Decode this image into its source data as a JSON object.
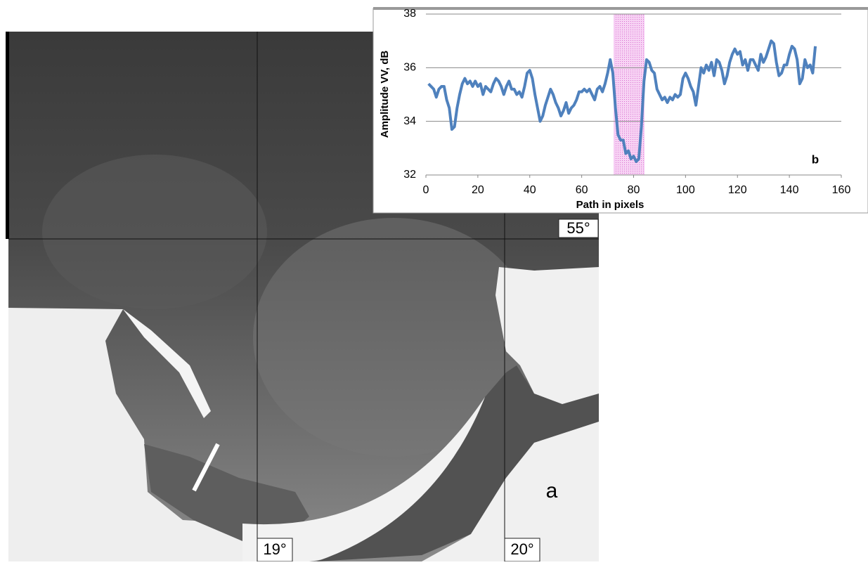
{
  "chart_data": {
    "type": "line",
    "xlabel": "Path in pixels",
    "ylabel": "Amplitude VV, dB",
    "annotation": "b",
    "color": "#4f81bd",
    "highlight": [
      72.5,
      84
    ],
    "highlight_color": "#f3b8f0",
    "xlim": [
      0,
      160
    ],
    "xticks": [
      0,
      20,
      40,
      60,
      80,
      100,
      120,
      140,
      160
    ],
    "ylim": [
      32,
      38
    ],
    "yticks": [
      32,
      34,
      36,
      38
    ],
    "grid": true,
    "x": [
      1,
      2,
      3,
      4,
      5,
      6,
      7,
      8,
      9,
      10,
      11,
      12,
      13,
      14,
      15,
      16,
      17,
      18,
      19,
      20,
      21,
      22,
      23,
      24,
      25,
      26,
      27,
      28,
      29,
      30,
      31,
      32,
      33,
      34,
      35,
      36,
      37,
      38,
      39,
      40,
      41,
      42,
      43,
      44,
      45,
      46,
      47,
      48,
      49,
      50,
      51,
      52,
      53,
      54,
      55,
      56,
      57,
      58,
      59,
      60,
      61,
      62,
      63,
      64,
      65,
      66,
      67,
      68,
      69,
      70,
      71,
      72,
      73,
      74,
      75,
      76,
      77,
      78,
      79,
      80,
      81,
      82,
      83,
      84,
      85,
      86,
      87,
      88,
      89,
      90,
      91,
      92,
      93,
      94,
      95,
      96,
      97,
      98,
      99,
      100,
      101,
      102,
      103,
      104,
      105,
      106,
      107,
      108,
      109,
      110,
      111,
      112,
      113,
      114,
      115,
      116,
      117,
      118,
      119,
      120,
      121,
      122,
      123,
      124,
      125,
      126,
      127,
      128,
      129,
      130,
      131,
      132,
      133,
      134,
      135,
      136,
      137,
      138,
      139,
      140,
      141,
      142,
      143,
      144,
      145,
      146,
      147,
      148,
      149,
      150
    ],
    "values": [
      35.4,
      35.3,
      35.2,
      34.9,
      35.2,
      35.3,
      35.3,
      34.8,
      34.5,
      33.7,
      33.8,
      34.5,
      35.0,
      35.4,
      35.6,
      35.4,
      35.5,
      35.3,
      35.5,
      35.3,
      35.4,
      35.0,
      35.3,
      35.2,
      35.1,
      35.4,
      35.6,
      35.5,
      35.3,
      35.0,
      35.3,
      35.5,
      35.2,
      35.2,
      35.0,
      35.1,
      34.9,
      35.3,
      35.8,
      35.9,
      35.6,
      35.0,
      34.5,
      34.0,
      34.2,
      34.6,
      34.9,
      35.2,
      35.0,
      34.7,
      34.5,
      34.2,
      34.4,
      34.7,
      34.3,
      34.5,
      34.6,
      34.8,
      35.1,
      35.1,
      35.2,
      35.1,
      35.2,
      35.0,
      34.8,
      35.2,
      35.3,
      35.1,
      35.4,
      35.8,
      36.3,
      35.8,
      34.5,
      33.5,
      33.3,
      33.3,
      32.8,
      32.9,
      32.6,
      32.7,
      32.5,
      32.6,
      33.8,
      35.5,
      36.3,
      36.2,
      35.9,
      35.8,
      35.2,
      35.0,
      34.8,
      34.9,
      34.7,
      34.9,
      34.8,
      35.0,
      34.9,
      35.0,
      35.6,
      35.8,
      35.6,
      35.3,
      35.1,
      34.6,
      35.3,
      36.0,
      35.8,
      36.1,
      35.9,
      36.2,
      35.7,
      36.3,
      36.2,
      35.9,
      35.4,
      35.7,
      36.2,
      36.5,
      36.7,
      36.5,
      36.6,
      36.1,
      36.3,
      35.9,
      36.3,
      36.3,
      36.1,
      35.9,
      36.5,
      36.2,
      36.4,
      36.7,
      37.0,
      36.9,
      36.2,
      35.7,
      35.8,
      36.1,
      36.1,
      36.5,
      36.8,
      36.7,
      36.3,
      35.4,
      35.6,
      36.3,
      36.0,
      36.1,
      35.8,
      36.8
    ]
  },
  "map": {
    "latitude_label": "55°",
    "longitude_labels": [
      "19°",
      "20°"
    ],
    "panel_label": "a"
  }
}
